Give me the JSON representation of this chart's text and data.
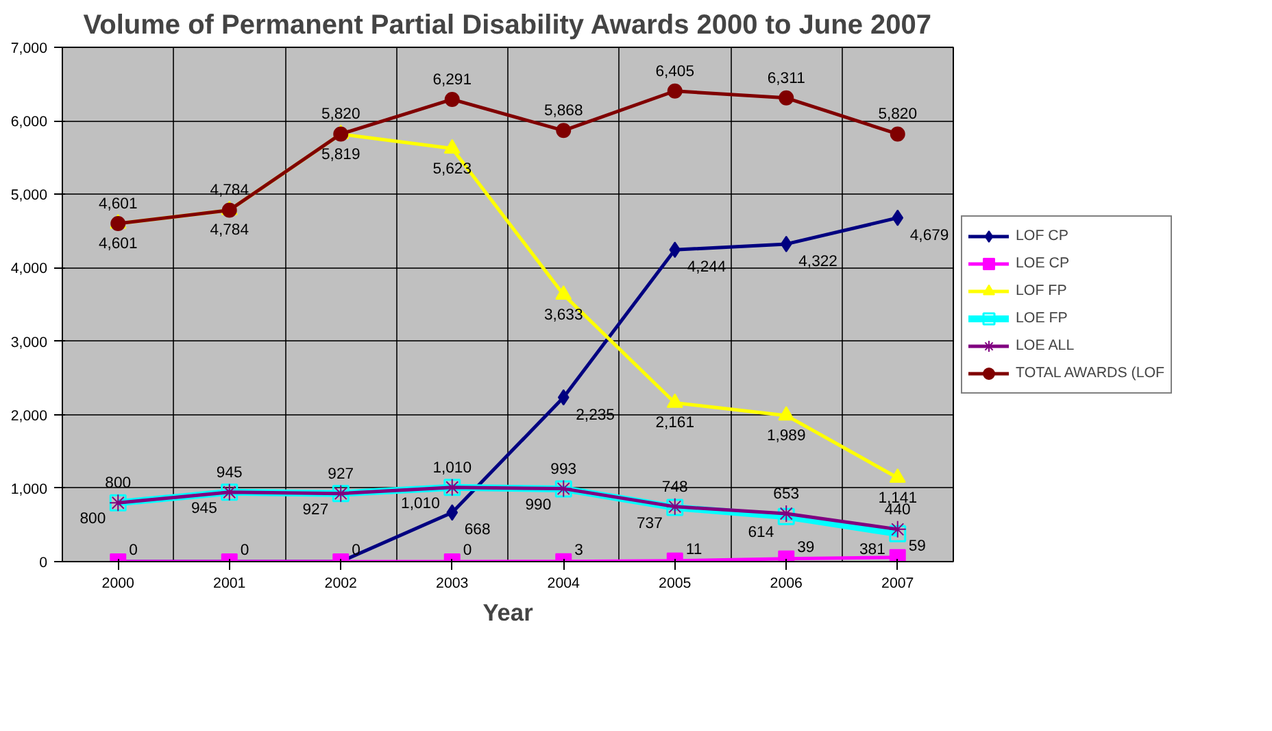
{
  "chart_data": {
    "type": "line",
    "title": "Volume of Permanent Partial Disability Awards 2000 to June 2007",
    "xlabel": "Year",
    "categories": [
      "2000",
      "2001",
      "2002",
      "2003",
      "2004",
      "2005",
      "2006",
      "2007"
    ],
    "ylim": [
      0,
      7000
    ],
    "yticks": [
      {
        "value": 0,
        "label": "0"
      },
      {
        "value": 1000,
        "label": "1,000"
      },
      {
        "value": 2000,
        "label": "2,000"
      },
      {
        "value": 3000,
        "label": "3,000"
      },
      {
        "value": 4000,
        "label": "4,000"
      },
      {
        "value": 5000,
        "label": "5,000"
      },
      {
        "value": 6000,
        "label": "6,000"
      },
      {
        "value": 7000,
        "label": "7,000"
      }
    ],
    "grid": true,
    "legend": "right",
    "series": [
      {
        "name": "LOF CP",
        "color": "#000080",
        "marker": "diamond",
        "values": [
          0,
          0,
          0,
          668,
          2235,
          4244,
          4322,
          4679
        ],
        "value_labels": [
          null,
          null,
          null,
          "668",
          "2,235",
          "4,244",
          "4,322",
          "4,679"
        ]
      },
      {
        "name": "LOE CP",
        "color": "#ff00ff",
        "marker": "square",
        "values": [
          0,
          0,
          0,
          0,
          3,
          11,
          39,
          59
        ],
        "value_labels": [
          "0",
          "0",
          "0",
          "0",
          "3",
          "11",
          "39",
          "59"
        ]
      },
      {
        "name": "LOF FP",
        "color": "#ffff00",
        "marker": "triangle",
        "values": [
          4601,
          4784,
          5819,
          5623,
          3633,
          2161,
          1989,
          1141
        ],
        "value_labels": [
          "4,601",
          "4,784",
          "5,819",
          "5,623",
          "3,633",
          "2,161",
          "1,989",
          "1,141"
        ]
      },
      {
        "name": "LOE FP",
        "color": "#00ffff",
        "marker": "square",
        "values": [
          800,
          945,
          927,
          1010,
          990,
          737,
          614,
          381
        ],
        "value_labels": [
          "800",
          "945",
          "927",
          "1,010",
          "990",
          "737",
          "614",
          "381"
        ]
      },
      {
        "name": "LOE ALL",
        "color": "#800080",
        "marker": "cross",
        "values": [
          800,
          945,
          927,
          1010,
          993,
          748,
          653,
          440
        ],
        "value_labels": [
          "800",
          "945",
          "927",
          "1,010",
          "993",
          "748",
          "653",
          "440"
        ]
      },
      {
        "name": "TOTAL AWARDS (LOF",
        "color": "#800000",
        "marker": "circle",
        "values": [
          4601,
          4784,
          5820,
          6291,
          5868,
          6405,
          6311,
          5820
        ],
        "value_labels": [
          "4,601",
          "4,784",
          "5,820",
          "6,291",
          "5,868",
          "6,405",
          "6,311",
          "5,820"
        ]
      }
    ]
  }
}
